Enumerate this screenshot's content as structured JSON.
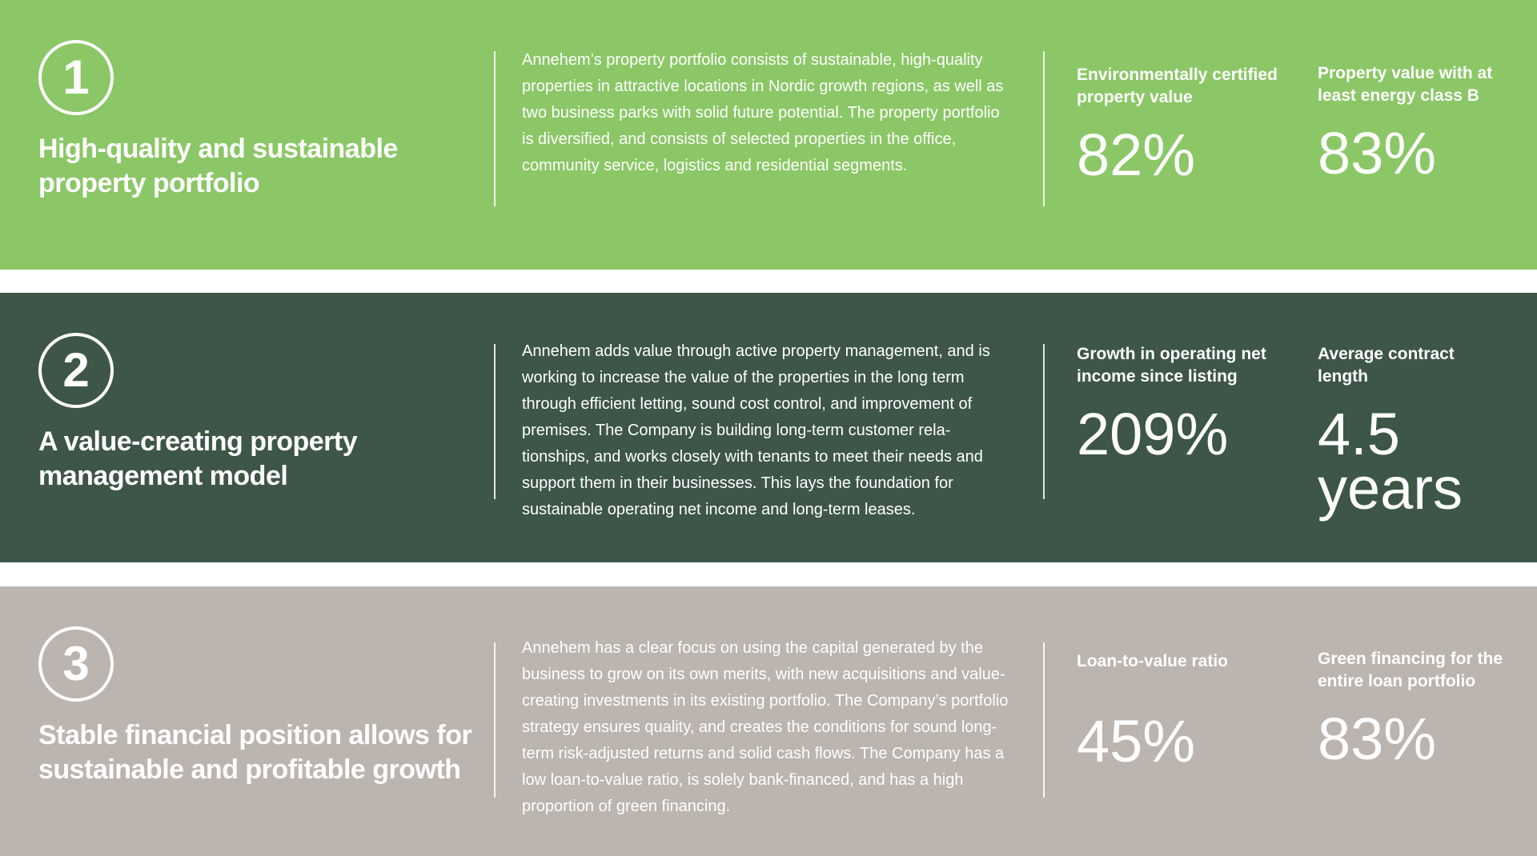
{
  "colors": {
    "band1": "#8BC766",
    "band2": "#3D5647",
    "band3": "#BCB5AF",
    "text": "#FFFFFF"
  },
  "sections": [
    {
      "number": "1",
      "title": "High-quality and sustainable property portfolio",
      "body": "Annehem’s property portfolio consists of sustainable, high-quality properties in attractive locations in Nordic growth regions, as well as two business parks with solid future potential. The property portfolio is diversified, and consists of selected properties in the office, community service, logistics and residential segments.",
      "stats": [
        {
          "label": "Environmentally certified property value",
          "value": "82%"
        },
        {
          "label": "Property value with at least energy class B",
          "value": "83%"
        }
      ]
    },
    {
      "number": "2",
      "title": "A value-creating property management model",
      "body": "Annehem adds value through active property management, and is working to increase the value of the properties in the long term through efficient letting, sound cost control, and improvement of premises. The Company is building long-term customer rela-tionships, and works closely with tenants to meet their needs and support them in their businesses. This lays the foundation for sustainable operating net income and long-term leases.",
      "stats": [
        {
          "label": "Growth in operating net income since listing",
          "value": "209%"
        },
        {
          "label": "Average contract length",
          "value": "4.5 years"
        }
      ]
    },
    {
      "number": "3",
      "title": "Stable financial position allows for sustainable and profitable growth",
      "body": "Annehem has a clear focus on using the capital generated by the business to grow on its own merits, with new acquisitions and value-creating investments in its existing portfolio. The Company’s portfolio strategy ensures quality, and creates the conditions for sound long-term risk-adjusted returns and solid cash flows. The Company has a low loan-to-value ratio, is solely bank-financed, and has a high proportion of green financing.",
      "stats": [
        {
          "label": "Loan-to-value ratio",
          "value": "45%"
        },
        {
          "label": "Green financing for the entire loan portfolio",
          "value": "83%"
        }
      ]
    }
  ]
}
